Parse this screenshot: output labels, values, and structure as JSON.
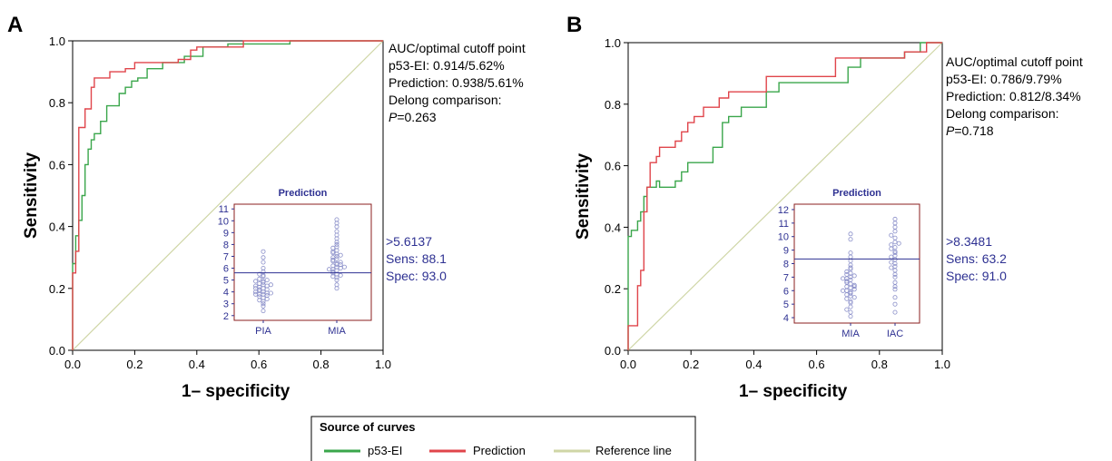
{
  "colors": {
    "p53": "#3aa64b",
    "prediction": "#e0454b",
    "reference": "#cfd6a6",
    "inset": "#2e3192",
    "inset_frame": "#8b1f1f"
  },
  "legend": {
    "title": "Source of curves",
    "items": [
      "p53-EI",
      "Prediction",
      "Reference line"
    ]
  },
  "chart_data": [
    {
      "panel": "A",
      "type": "line",
      "xlabel": "1– specificity",
      "ylabel": "Sensitivity",
      "xlim": [
        0,
        1
      ],
      "ylim": [
        0,
        1
      ],
      "xticks": [
        "0.0",
        "0.2",
        "0.4",
        "0.6",
        "0.8",
        "1.0"
      ],
      "yticks": [
        "0.0",
        "0.2",
        "0.4",
        "0.6",
        "0.8",
        "1.0"
      ],
      "annotation": [
        "AUC/optimal cutoff point",
        "p53-EI: 0.914/5.62%",
        "Prediction: 0.938/5.61%",
        "Delong comparison:",
        "=0.263"
      ],
      "p_label": "P",
      "series": [
        {
          "name": "p53-EI",
          "points": [
            [
              0,
              0
            ],
            [
              0,
              0.28
            ],
            [
              0.01,
              0.28
            ],
            [
              0.01,
              0.37
            ],
            [
              0.02,
              0.37
            ],
            [
              0.02,
              0.42
            ],
            [
              0.03,
              0.42
            ],
            [
              0.03,
              0.5
            ],
            [
              0.04,
              0.5
            ],
            [
              0.04,
              0.6
            ],
            [
              0.05,
              0.6
            ],
            [
              0.05,
              0.65
            ],
            [
              0.06,
              0.65
            ],
            [
              0.06,
              0.68
            ],
            [
              0.07,
              0.68
            ],
            [
              0.07,
              0.7
            ],
            [
              0.09,
              0.7
            ],
            [
              0.09,
              0.74
            ],
            [
              0.11,
              0.74
            ],
            [
              0.11,
              0.79
            ],
            [
              0.15,
              0.79
            ],
            [
              0.15,
              0.83
            ],
            [
              0.17,
              0.83
            ],
            [
              0.17,
              0.85
            ],
            [
              0.19,
              0.85
            ],
            [
              0.19,
              0.87
            ],
            [
              0.21,
              0.87
            ],
            [
              0.21,
              0.88
            ],
            [
              0.24,
              0.88
            ],
            [
              0.24,
              0.91
            ],
            [
              0.29,
              0.91
            ],
            [
              0.29,
              0.93
            ],
            [
              0.36,
              0.93
            ],
            [
              0.36,
              0.95
            ],
            [
              0.42,
              0.95
            ],
            [
              0.42,
              0.98
            ],
            [
              0.5,
              0.98
            ],
            [
              0.5,
              0.99
            ],
            [
              0.7,
              0.99
            ],
            [
              0.7,
              1
            ],
            [
              1,
              1
            ]
          ]
        },
        {
          "name": "Prediction",
          "points": [
            [
              0,
              0
            ],
            [
              0,
              0.25
            ],
            [
              0.01,
              0.25
            ],
            [
              0.01,
              0.32
            ],
            [
              0.02,
              0.32
            ],
            [
              0.02,
              0.72
            ],
            [
              0.04,
              0.72
            ],
            [
              0.04,
              0.78
            ],
            [
              0.06,
              0.78
            ],
            [
              0.06,
              0.85
            ],
            [
              0.07,
              0.85
            ],
            [
              0.07,
              0.88
            ],
            [
              0.12,
              0.88
            ],
            [
              0.12,
              0.9
            ],
            [
              0.17,
              0.9
            ],
            [
              0.17,
              0.91
            ],
            [
              0.2,
              0.91
            ],
            [
              0.2,
              0.93
            ],
            [
              0.34,
              0.93
            ],
            [
              0.34,
              0.94
            ],
            [
              0.38,
              0.94
            ],
            [
              0.38,
              0.97
            ],
            [
              0.4,
              0.97
            ],
            [
              0.4,
              0.98
            ],
            [
              0.55,
              0.98
            ],
            [
              0.55,
              1
            ],
            [
              1,
              1
            ]
          ]
        },
        {
          "name": "Reference line",
          "points": [
            [
              0,
              0
            ],
            [
              1,
              1
            ]
          ]
        }
      ],
      "inset": {
        "title": "Prediction",
        "categories": [
          "PIA",
          "MIA"
        ],
        "yticks": [
          "2",
          "3",
          "4",
          "5",
          "6",
          "7",
          "8",
          "9",
          "10",
          "11"
        ],
        "ylim": [
          1.6,
          11.4
        ],
        "cutoff": 5.6137,
        "dots": [
          [
            3.8,
            3.5,
            3.2,
            4.0,
            4.3,
            3.8,
            4.6,
            4.9,
            4.1,
            3.6,
            5.1,
            4.4,
            3.9,
            4.8,
            5.4,
            4.5,
            3.3,
            5.7,
            2.8,
            4.2,
            3.7,
            5.0,
            4.7,
            6.0,
            3.4,
            4.5,
            5.3,
            3.0,
            4.0,
            6.5,
            2.4,
            7.4,
            4.9,
            3.8,
            4.2,
            5.5,
            4.6,
            3.9,
            4.3,
            6.9
          ],
          [
            5.2,
            5.8,
            6.1,
            5.5,
            6.4,
            6.8,
            7.2,
            5.9,
            6.3,
            7.5,
            5.6,
            6.0,
            6.6,
            7.0,
            7.8,
            8.2,
            5.4,
            6.2,
            6.9,
            7.3,
            8.5,
            9.1,
            4.3,
            4.6,
            5.0,
            6.5,
            7.7,
            8.8,
            9.5,
            10.1,
            5.7,
            6.7,
            7.1,
            8.0,
            6.3,
            5.9,
            7.4,
            6.1,
            5.3,
            9.8
          ]
        ],
        "side_text": [
          ">5.6137",
          "Sens: 88.1",
          "Spec: 93.0"
        ]
      }
    },
    {
      "panel": "B",
      "type": "line",
      "xlabel": "1– specificity",
      "ylabel": "Sensitivity",
      "xlim": [
        0,
        1
      ],
      "ylim": [
        0,
        1
      ],
      "xticks": [
        "0.0",
        "0.2",
        "0.4",
        "0.6",
        "0.8",
        "1.0"
      ],
      "yticks": [
        "0.0",
        "0.2",
        "0.4",
        "0.6",
        "0.8",
        "1.0"
      ],
      "annotation": [
        "AUC/optimal cutoff point",
        "p53-EI: 0.786/9.79%",
        "Prediction: 0.812/8.34%",
        "Delong comparison:",
        "=0.718"
      ],
      "p_label": "P",
      "series": [
        {
          "name": "p53-EI",
          "points": [
            [
              0,
              0
            ],
            [
              0,
              0.37
            ],
            [
              0.01,
              0.37
            ],
            [
              0.01,
              0.39
            ],
            [
              0.03,
              0.39
            ],
            [
              0.03,
              0.42
            ],
            [
              0.04,
              0.42
            ],
            [
              0.04,
              0.45
            ],
            [
              0.05,
              0.45
            ],
            [
              0.05,
              0.5
            ],
            [
              0.06,
              0.5
            ],
            [
              0.06,
              0.53
            ],
            [
              0.09,
              0.53
            ],
            [
              0.09,
              0.55
            ],
            [
              0.1,
              0.55
            ],
            [
              0.1,
              0.53
            ],
            [
              0.15,
              0.53
            ],
            [
              0.15,
              0.55
            ],
            [
              0.17,
              0.55
            ],
            [
              0.17,
              0.58
            ],
            [
              0.19,
              0.58
            ],
            [
              0.19,
              0.61
            ],
            [
              0.27,
              0.61
            ],
            [
              0.27,
              0.66
            ],
            [
              0.3,
              0.66
            ],
            [
              0.3,
              0.74
            ],
            [
              0.32,
              0.74
            ],
            [
              0.32,
              0.76
            ],
            [
              0.36,
              0.76
            ],
            [
              0.36,
              0.79
            ],
            [
              0.44,
              0.79
            ],
            [
              0.44,
              0.84
            ],
            [
              0.48,
              0.84
            ],
            [
              0.48,
              0.87
            ],
            [
              0.7,
              0.87
            ],
            [
              0.7,
              0.92
            ],
            [
              0.74,
              0.92
            ],
            [
              0.74,
              0.95
            ],
            [
              0.88,
              0.95
            ],
            [
              0.88,
              0.97
            ],
            [
              0.93,
              0.97
            ],
            [
              0.93,
              1
            ],
            [
              1,
              1
            ]
          ]
        },
        {
          "name": "Prediction",
          "points": [
            [
              0,
              0
            ],
            [
              0,
              0.08
            ],
            [
              0.03,
              0.08
            ],
            [
              0.03,
              0.21
            ],
            [
              0.04,
              0.21
            ],
            [
              0.04,
              0.26
            ],
            [
              0.05,
              0.26
            ],
            [
              0.05,
              0.45
            ],
            [
              0.06,
              0.45
            ],
            [
              0.06,
              0.53
            ],
            [
              0.07,
              0.53
            ],
            [
              0.07,
              0.61
            ],
            [
              0.09,
              0.61
            ],
            [
              0.09,
              0.63
            ],
            [
              0.1,
              0.63
            ],
            [
              0.1,
              0.66
            ],
            [
              0.15,
              0.66
            ],
            [
              0.15,
              0.68
            ],
            [
              0.17,
              0.68
            ],
            [
              0.17,
              0.71
            ],
            [
              0.19,
              0.71
            ],
            [
              0.19,
              0.74
            ],
            [
              0.21,
              0.74
            ],
            [
              0.21,
              0.76
            ],
            [
              0.24,
              0.76
            ],
            [
              0.24,
              0.79
            ],
            [
              0.29,
              0.79
            ],
            [
              0.29,
              0.82
            ],
            [
              0.32,
              0.82
            ],
            [
              0.32,
              0.84
            ],
            [
              0.44,
              0.84
            ],
            [
              0.44,
              0.89
            ],
            [
              0.66,
              0.89
            ],
            [
              0.66,
              0.95
            ],
            [
              0.88,
              0.95
            ],
            [
              0.88,
              0.97
            ],
            [
              0.95,
              0.97
            ],
            [
              0.95,
              1
            ],
            [
              1,
              1
            ]
          ]
        },
        {
          "name": "Reference line",
          "points": [
            [
              0,
              0
            ],
            [
              1,
              1
            ]
          ]
        }
      ],
      "inset": {
        "title": "Prediction",
        "categories": [
          "MIA",
          "IAC"
        ],
        "yticks": [
          "4",
          "5",
          "6",
          "7",
          "8",
          "9",
          "10",
          "11",
          "12"
        ],
        "ylim": [
          3.6,
          12.4
        ],
        "cutoff": 8.3481,
        "dots": [
          [
            6.2,
            6.5,
            5.9,
            7.0,
            6.8,
            5.6,
            6.3,
            7.3,
            6.0,
            5.4,
            6.6,
            7.6,
            5.2,
            6.9,
            7.9,
            6.1,
            5.8,
            7.2,
            8.2,
            4.4,
            4.1,
            9.8,
            10.2,
            6.4,
            7.1,
            5.5,
            6.7,
            8.5,
            4.8,
            7.4,
            6.0,
            5.7,
            6.3,
            7.7,
            8.8,
            5.1,
            6.9,
            4.6
          ],
          [
            8.0,
            8.6,
            9.2,
            7.5,
            8.9,
            9.6,
            7.2,
            6.6,
            8.3,
            9.9,
            10.4,
            11.0,
            7.8,
            8.5,
            6.1,
            9.4,
            10.7,
            5.5,
            4.4,
            5.0,
            7.0,
            8.1,
            9.1,
            11.3,
            6.3,
            7.7,
            8.8,
            9.5,
            10.1
          ]
        ],
        "side_text": [
          ">8.3481",
          "Sens: 63.2",
          "Spec: 91.0"
        ]
      }
    }
  ]
}
